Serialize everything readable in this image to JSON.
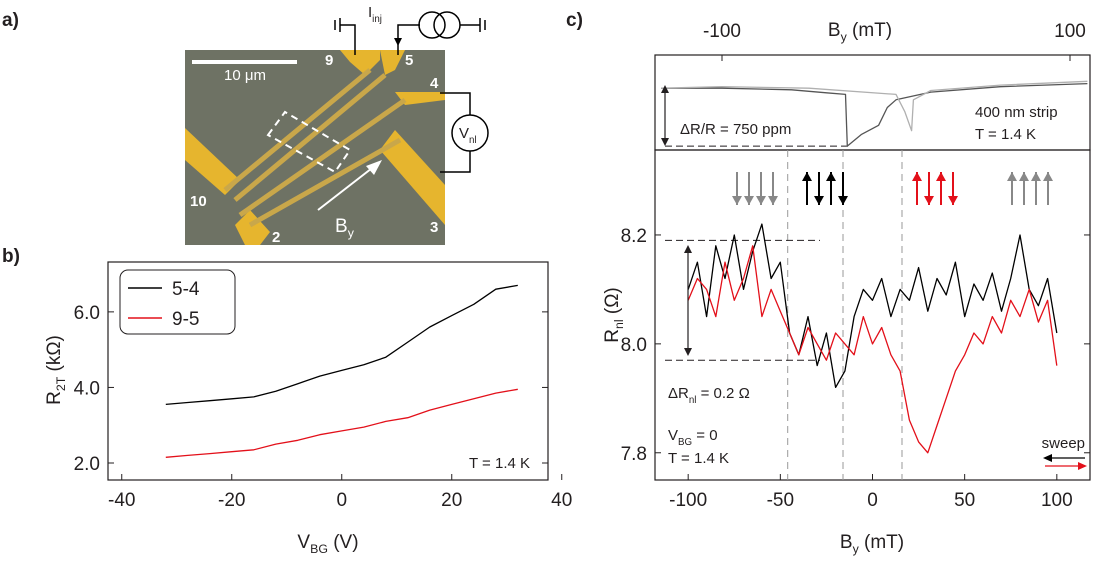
{
  "panel_labels": [
    "a)",
    "b)",
    "c)"
  ],
  "micrograph": {
    "scale_bar": "10 μm",
    "contacts": [
      "9",
      "5",
      "4",
      "10",
      "2",
      "3"
    ],
    "field": [
      "B",
      "y"
    ],
    "current": [
      "I",
      "inj"
    ],
    "voltage": [
      "V",
      "nl"
    ]
  },
  "chart_data": [
    {
      "type": "line",
      "xlabel": [
        "V",
        "BG",
        " (V)"
      ],
      "ylabel": [
        "R",
        "2T",
        " (kΩ)"
      ],
      "xlim": [
        -42.5,
        37.5
      ],
      "xticks": [
        -40,
        -20,
        0,
        20,
        40
      ],
      "ylim": [
        1.55,
        7.32
      ],
      "yticks": [
        {
          "value": 2,
          "label": "2.0"
        },
        {
          "value": 4,
          "label": "4.0"
        },
        {
          "value": 6,
          "label": "6.0"
        }
      ],
      "x": [
        -32,
        -28,
        -24,
        -20,
        -16,
        -12,
        -8,
        -4,
        0,
        4,
        8,
        12,
        16,
        20,
        24,
        28,
        32
      ],
      "series": [
        {
          "name": "5-4",
          "color": "#000000",
          "values": [
            3.55,
            3.6,
            3.65,
            3.7,
            3.75,
            3.9,
            4.1,
            4.3,
            4.45,
            4.6,
            4.8,
            5.2,
            5.6,
            5.9,
            6.2,
            6.6,
            6.7
          ]
        },
        {
          "name": "9-5",
          "color": "#e3101a",
          "values": [
            2.15,
            2.2,
            2.25,
            2.3,
            2.35,
            2.5,
            2.6,
            2.75,
            2.85,
            2.95,
            3.1,
            3.2,
            3.4,
            3.55,
            3.7,
            3.85,
            3.95
          ]
        }
      ],
      "legend": "upper left",
      "annotations": [
        "T = 1.4 K"
      ]
    },
    {
      "type": "line",
      "xaxis": "top",
      "xlabel": [
        "B",
        "y",
        " (mT)"
      ],
      "xlim": [
        -138.5,
        111.5
      ],
      "xticks": [
        -100,
        100
      ],
      "ylim": [
        -800,
        430
      ],
      "hlines": [
        -750
      ],
      "series": [
        {
          "color": "#555555",
          "x": [
            -135,
            -100,
            -60,
            -40,
            -29,
            -28,
            -20,
            -10,
            -5,
            0,
            20,
            60,
            110
          ],
          "values": [
            0,
            0,
            -20,
            -60,
            -80,
            -750,
            -600,
            -480,
            -250,
            -150,
            -50,
            20,
            60
          ]
        },
        {
          "color": "#b0b0b0",
          "x": [
            -135,
            -100,
            -50,
            0,
            5,
            9,
            10,
            20,
            60,
            110
          ],
          "values": [
            0,
            20,
            0,
            -80,
            -300,
            -550,
            -150,
            -30,
            40,
            90
          ]
        }
      ],
      "annotations": [
        "ΔR/R = 750 ppm",
        "400 nm strip",
        "T = 1.4 K"
      ]
    },
    {
      "type": "line",
      "xlabel": [
        "B",
        "y",
        " (mT)"
      ],
      "ylabel": [
        "R",
        "nl",
        " (Ω)"
      ],
      "xlim": [
        -118,
        118
      ],
      "xticks": [
        -100,
        -50,
        0,
        50,
        100
      ],
      "ylim": [
        7.75,
        8.356
      ],
      "yticks": [
        7.8,
        {
          "value": 8,
          "label": "8.0"
        },
        8.2
      ],
      "vlines": [
        -46,
        -16,
        16
      ],
      "hlines": [
        8.19,
        7.97
      ],
      "x": [
        -100,
        -95,
        -90,
        -85,
        -80,
        -75,
        -70,
        -65,
        -60,
        -55,
        -50,
        -45,
        -40,
        -35,
        -30,
        -25,
        -20,
        -15,
        -10,
        -5,
        0,
        5,
        10,
        15,
        20,
        25,
        30,
        35,
        40,
        45,
        50,
        55,
        60,
        65,
        70,
        75,
        80,
        85,
        90,
        95,
        100
      ],
      "series": [
        {
          "color": "#000000",
          "values": [
            8.1,
            8.15,
            8.05,
            8.18,
            8.12,
            8.2,
            8.1,
            8.17,
            8.22,
            8.12,
            8.15,
            8.02,
            7.98,
            8.05,
            7.96,
            8.02,
            7.92,
            7.95,
            8.05,
            8.1,
            8.08,
            8.12,
            8.05,
            8.1,
            8.08,
            8.14,
            8.06,
            8.12,
            8.09,
            8.15,
            8.05,
            8.11,
            8.08,
            8.13,
            8.06,
            8.12,
            8.2,
            8.1,
            8.07,
            8.12,
            8.02
          ]
        },
        {
          "color": "#e3101a",
          "values": [
            8.08,
            8.12,
            8.1,
            8.05,
            8.15,
            8.08,
            8.12,
            8.18,
            8.05,
            8.1,
            8.06,
            8.02,
            7.98,
            8.03,
            8.0,
            7.97,
            8.02,
            8.0,
            7.98,
            8.05,
            8.0,
            8.03,
            7.98,
            7.95,
            7.86,
            7.82,
            7.8,
            7.85,
            7.9,
            7.95,
            7.98,
            8.02,
            8.0,
            8.05,
            8.02,
            8.08,
            8.05,
            8.1,
            8.04,
            8.08,
            7.96
          ]
        }
      ],
      "annotations": [
        [
          "ΔR",
          "nl",
          " = 0.2 Ω"
        ],
        [
          "V",
          "BG",
          " = 0"
        ],
        "T = 1.4 K",
        "sweep"
      ]
    }
  ]
}
